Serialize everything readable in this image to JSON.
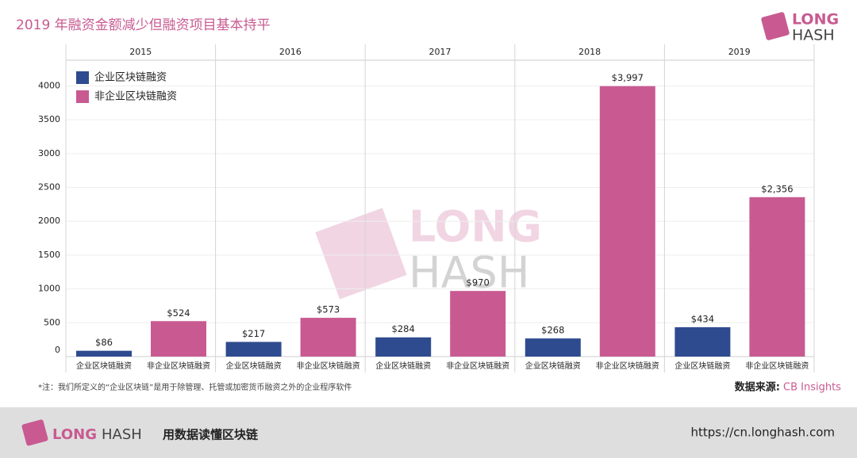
{
  "chart_data": {
    "type": "bar",
    "title": "2019 年融资金额减少但融资项目基本持平",
    "categories": [
      "2015",
      "2016",
      "2017",
      "2018",
      "2019"
    ],
    "series": [
      {
        "name": "企业区块链融资",
        "color": "#2f4b8f",
        "values": [
          86,
          217,
          284,
          268,
          434
        ],
        "value_labels": [
          "$86",
          "$217",
          "$284",
          "$268",
          "$434"
        ]
      },
      {
        "name": "非企业区块链融资",
        "color": "#c85a91",
        "values": [
          524,
          573,
          970,
          3997,
          2356
        ],
        "value_labels": [
          "$524",
          "$573",
          "$970",
          "$3,997",
          "$2,356"
        ]
      }
    ],
    "ylim": [
      0,
      4380
    ],
    "yticks": [
      0,
      500,
      1000,
      1500,
      2000,
      2500,
      3000,
      3500,
      4000
    ],
    "grid": true,
    "legend": "top-left",
    "footnote": "*注：我们所定义的“企业区块链”是用于除管理、托管或加密货币融资之外的企业程序软件",
    "source_label": "数据来源:",
    "source": "CB Insights"
  },
  "brand": {
    "long": "LONG",
    "hash": "HASH",
    "slogan": "用数据读懂区块链",
    "url": "https://cn.longhash.com"
  }
}
